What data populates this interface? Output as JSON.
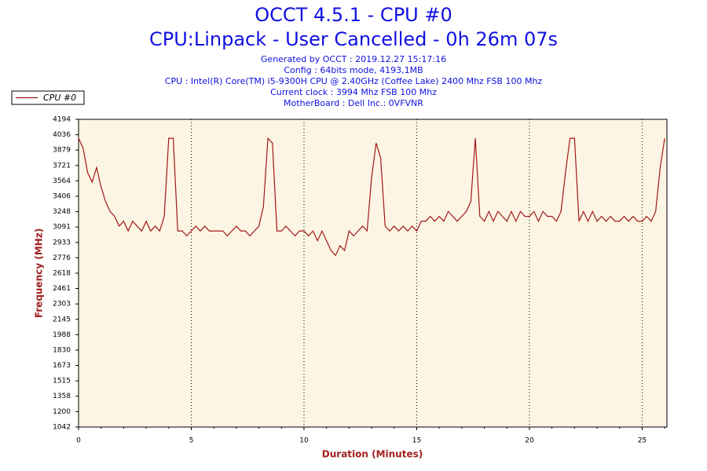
{
  "chart_data": {
    "type": "line",
    "title": "OCCT 4.5.1 - CPU #0",
    "subtitle": "CPU:Linpack - User Cancelled - 0h 26m 07s",
    "info_lines": [
      "Generated by OCCT : 2019.12.27 15:17:16",
      "Config : 64bits mode, 4193,1MB",
      "CPU : Intel(R) Core(TM) i5-9300H CPU @ 2.40GHz (Coffee Lake) 2400 Mhz FSB 100 Mhz",
      "Current clock : 3994 Mhz FSB 100 Mhz",
      "MotherBoard : Dell Inc.: 0VFVNR"
    ],
    "x_label": "Duration (Minutes)",
    "y_label": "Frequency (MHz)",
    "xlim": [
      0,
      26.1
    ],
    "xticks": [
      0,
      5,
      10,
      15,
      20,
      25
    ],
    "ylim": [
      1042,
      4194
    ],
    "yticks": [
      1042,
      1200,
      1358,
      1515,
      1673,
      1830,
      1988,
      2145,
      2303,
      2461,
      2618,
      2776,
      2933,
      3091,
      3248,
      3406,
      3564,
      3721,
      3879,
      4036,
      4194
    ],
    "grid": true,
    "legend": "top-left",
    "x": [
      0,
      0.2,
      0.4,
      0.6,
      0.8,
      1,
      1.2,
      1.4,
      1.6,
      1.8,
      2,
      2.2,
      2.4,
      2.6,
      2.8,
      3,
      3.2,
      3.4,
      3.6,
      3.8,
      4,
      4.2,
      4.4,
      4.6,
      4.8,
      5,
      5.2,
      5.4,
      5.6,
      5.8,
      6,
      6.2,
      6.4,
      6.6,
      6.8,
      7,
      7.2,
      7.4,
      7.6,
      7.8,
      8,
      8.2,
      8.4,
      8.6,
      8.8,
      9,
      9.2,
      9.4,
      9.6,
      9.8,
      10,
      10.2,
      10.4,
      10.6,
      10.8,
      11,
      11.2,
      11.4,
      11.6,
      11.8,
      12,
      12.2,
      12.4,
      12.6,
      12.8,
      13,
      13.2,
      13.4,
      13.6,
      13.8,
      14,
      14.2,
      14.4,
      14.6,
      14.8,
      15,
      15.2,
      15.4,
      15.6,
      15.8,
      16,
      16.2,
      16.4,
      16.6,
      16.8,
      17,
      17.2,
      17.4,
      17.6,
      17.8,
      18,
      18.2,
      18.4,
      18.6,
      18.8,
      19,
      19.2,
      19.4,
      19.6,
      19.8,
      20,
      20.2,
      20.4,
      20.6,
      20.8,
      21,
      21.2,
      21.4,
      21.6,
      21.8,
      22,
      22.2,
      22.4,
      22.6,
      22.8,
      23,
      23.2,
      23.4,
      23.6,
      23.8,
      24,
      24.2,
      24.4,
      24.6,
      24.8,
      25,
      25.2,
      25.4,
      25.6,
      25.8,
      26
    ],
    "series": [
      {
        "name": "CPU #0",
        "color": "#a01818",
        "values": [
          4000,
          3900,
          3650,
          3550,
          3700,
          3500,
          3350,
          3250,
          3200,
          3100,
          3150,
          3050,
          3150,
          3100,
          3050,
          3150,
          3050,
          3100,
          3050,
          3200,
          4000,
          4000,
          3050,
          3050,
          3000,
          3050,
          3100,
          3050,
          3100,
          3050,
          3050,
          3050,
          3050,
          3000,
          3050,
          3100,
          3050,
          3050,
          3000,
          3050,
          3100,
          3300,
          4000,
          3950,
          3050,
          3050,
          3100,
          3050,
          3000,
          3050,
          3050,
          3000,
          3050,
          2950,
          3050,
          2950,
          2850,
          2800,
          2900,
          2850,
          3050,
          3000,
          3050,
          3100,
          3050,
          3600,
          3950,
          3800,
          3100,
          3050,
          3100,
          3050,
          3100,
          3050,
          3100,
          3050,
          3150,
          3150,
          3200,
          3150,
          3200,
          3150,
          3250,
          3200,
          3150,
          3200,
          3250,
          3350,
          4000,
          3200,
          3150,
          3250,
          3150,
          3250,
          3200,
          3150,
          3250,
          3150,
          3250,
          3200,
          3200,
          3250,
          3150,
          3250,
          3200,
          3200,
          3150,
          3250,
          3650,
          4000,
          4000,
          3150,
          3250,
          3150,
          3250,
          3150,
          3200,
          3150,
          3200,
          3150,
          3150,
          3200,
          3150,
          3200,
          3150,
          3150,
          3200,
          3150,
          3250,
          3700,
          4000
        ]
      }
    ]
  }
}
